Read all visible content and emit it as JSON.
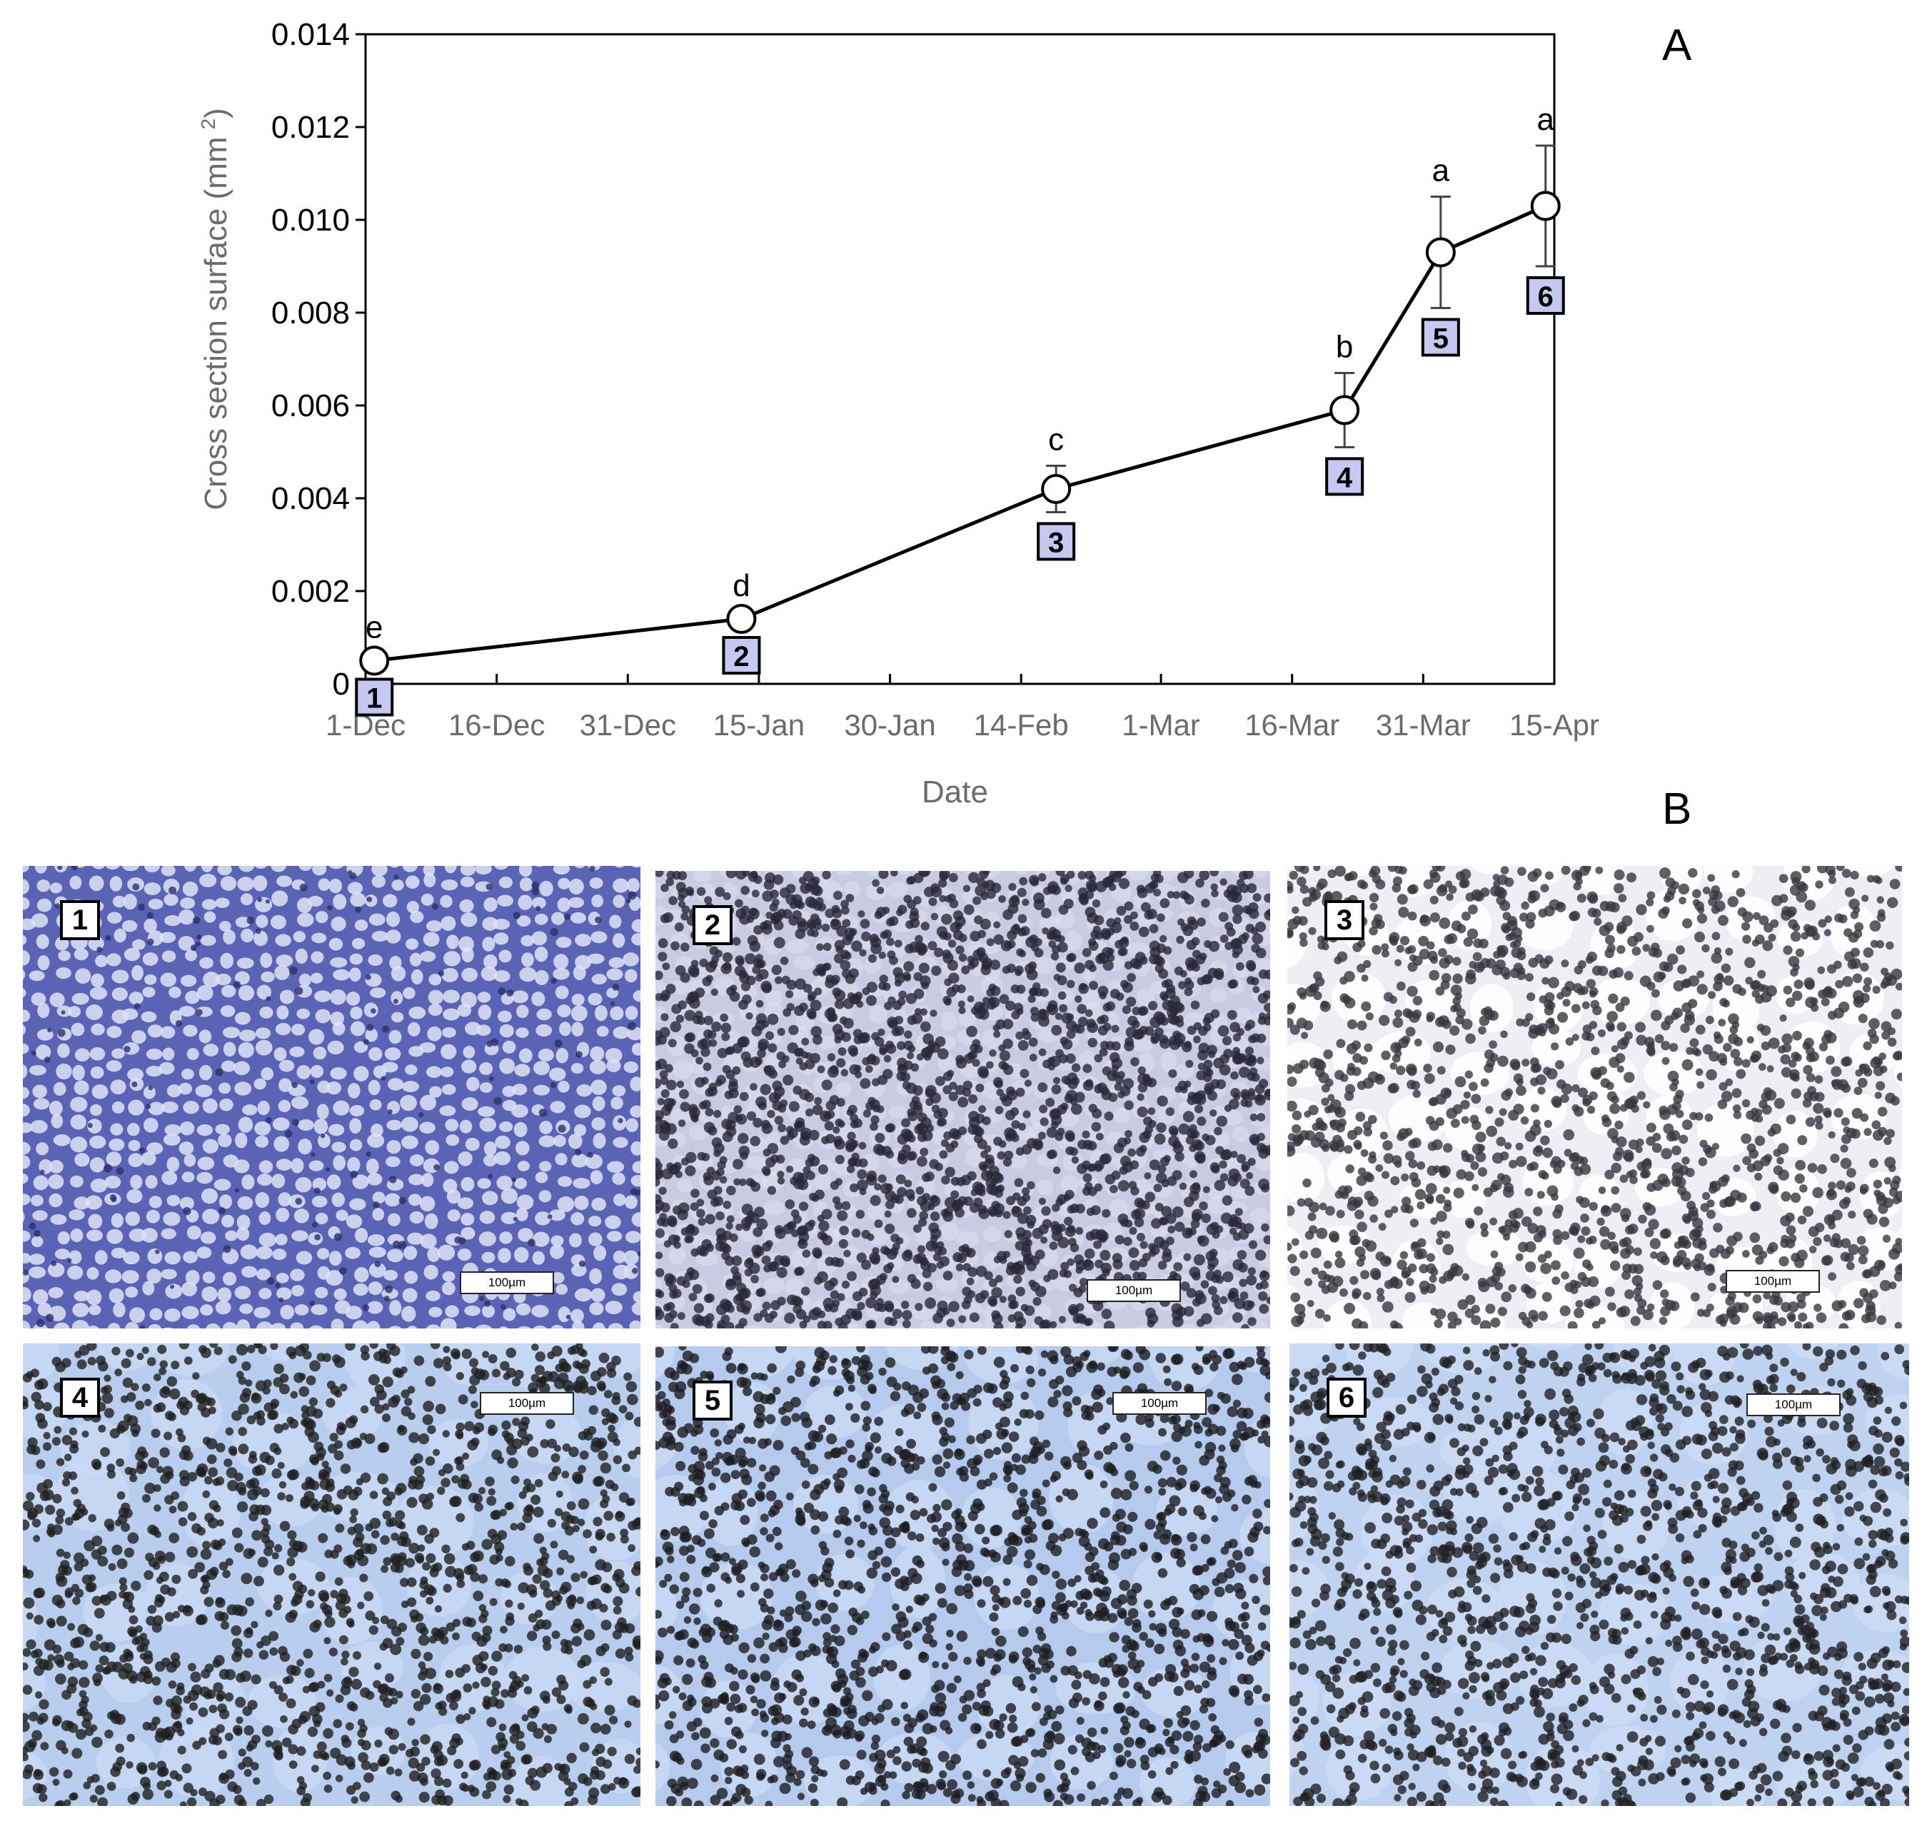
{
  "chart_data": {
    "type": "line",
    "xlabel": "Date",
    "ylabel": "Cross section surface (mm 2)",
    "ylabel_main": "Cross section surface (mm",
    "ylabel_sup": "2",
    "ylabel_close": ")",
    "ylim": [
      0,
      0.014
    ],
    "xlim": [
      "1-Dec",
      "15-Apr"
    ],
    "x_ticks": [
      "1-Dec",
      "16-Dec",
      "31-Dec",
      "15-Jan",
      "30-Jan",
      "14-Feb",
      "1-Mar",
      "16-Mar",
      "31-Mar",
      "15-Apr"
    ],
    "y_ticks": [
      "0",
      "0.002",
      "0.004",
      "0.006",
      "0.008",
      "0.010",
      "0.012",
      "0.014"
    ],
    "grid": false,
    "series": [
      {
        "points": [
          {
            "x": "2-Dec",
            "y": 0.0005,
            "err": 0.0,
            "letter": "e",
            "sample": "1"
          },
          {
            "x": "13-Jan",
            "y": 0.0014,
            "err": 0.0,
            "letter": "d",
            "sample": "2"
          },
          {
            "x": "18-Feb",
            "y": 0.0042,
            "err": 0.0005,
            "letter": "c",
            "sample": "3"
          },
          {
            "x": "22-Mar",
            "y": 0.0059,
            "err": 0.0008,
            "letter": "b",
            "sample": "4"
          },
          {
            "x": "2-Apr",
            "y": 0.0093,
            "err": 0.0012,
            "letter": "a",
            "sample": "5"
          },
          {
            "x": "14-Apr",
            "y": 0.0103,
            "err": 0.0013,
            "letter": "a",
            "sample": "6"
          }
        ]
      }
    ]
  },
  "panel_a_label": "A",
  "panel_b_label": "B",
  "micrographs": [
    {
      "number": "1",
      "scale_label": "100µm",
      "bg": "#5a63b4",
      "cell": "#dfe3f7",
      "dot": "#2c2f6a"
    },
    {
      "number": "2",
      "scale_label": "100µm",
      "bg": "#c9cbe3",
      "cell": "#e9ebf6",
      "dot": "#2a2838"
    },
    {
      "number": "3",
      "scale_label": "100µm",
      "bg": "#f1edf5",
      "cell": "#ffffff",
      "dot": "#3a3640"
    },
    {
      "number": "4",
      "scale_label": "100µm",
      "bg": "#b9cdef",
      "cell": "#c8d8f4",
      "dot": "#1f1f1f"
    },
    {
      "number": "5",
      "scale_label": "100µm",
      "bg": "#b6caee",
      "cell": "#c9d9f5",
      "dot": "#1d1d22"
    },
    {
      "number": "6",
      "scale_label": "100µm",
      "bg": "#bfd2f0",
      "cell": "#cbdaf5",
      "dot": "#202024"
    }
  ]
}
